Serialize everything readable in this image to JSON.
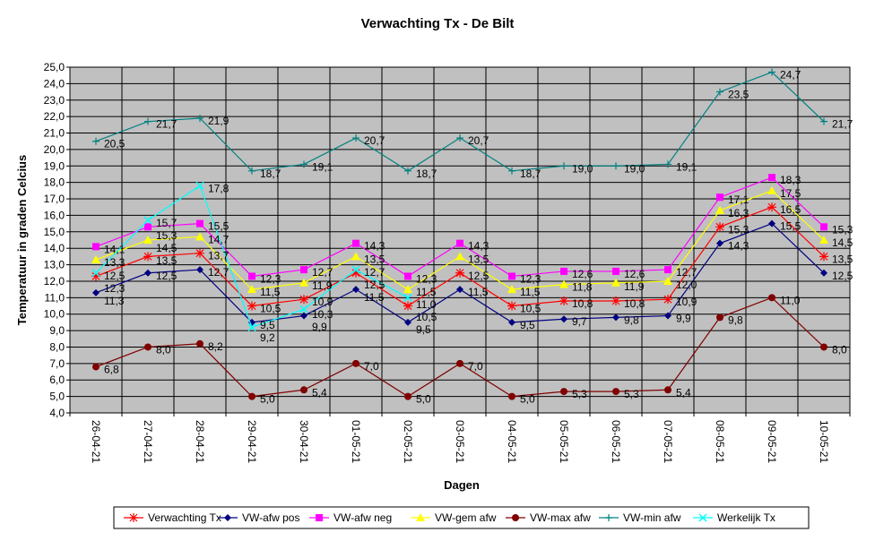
{
  "chart_data": {
    "type": "line",
    "title": "Verwachting Tx - De Bilt",
    "xlabel": "Dagen",
    "ylabel": "Temperatuur in graden Celcius",
    "ylim": [
      4,
      25
    ],
    "ytick_step": 1,
    "grid": true,
    "legend_position": "bottom",
    "categories": [
      "26-04-21",
      "27-04-21",
      "28-04-21",
      "29-04-21",
      "30-04-21",
      "01-05-21",
      "02-05-21",
      "03-05-21",
      "04-05-21",
      "05-05-21",
      "06-05-21",
      "07-05-21",
      "08-05-21",
      "09-05-21",
      "10-05-21"
    ],
    "series": [
      {
        "name": "Verwachting Tx",
        "color": "#ff0000",
        "marker": "star",
        "values": [
          12.3,
          13.5,
          13.7,
          10.5,
          10.9,
          12.5,
          10.5,
          12.5,
          10.5,
          10.8,
          10.8,
          10.9,
          15.3,
          16.5,
          13.5
        ]
      },
      {
        "name": "VW-afw pos",
        "color": "#000080",
        "marker": "diamond",
        "values": [
          11.3,
          12.5,
          12.7,
          9.5,
          9.9,
          11.5,
          9.5,
          11.5,
          9.5,
          9.7,
          9.8,
          9.9,
          14.3,
          15.5,
          12.5
        ]
      },
      {
        "name": "VW-afw neg",
        "color": "#ff00ff",
        "marker": "square",
        "values": [
          14.1,
          15.3,
          15.5,
          12.3,
          12.7,
          14.3,
          12.3,
          14.3,
          12.3,
          12.6,
          12.6,
          12.7,
          17.1,
          18.3,
          15.3
        ]
      },
      {
        "name": "VW-gem afw",
        "color": "#ffff00",
        "marker": "triangle",
        "values": [
          13.3,
          14.5,
          14.7,
          11.5,
          11.9,
          13.5,
          11.5,
          13.5,
          11.5,
          11.8,
          11.9,
          12.0,
          16.3,
          17.5,
          14.5
        ]
      },
      {
        "name": "VW-max afw",
        "color": "#800000",
        "marker": "circle",
        "values": [
          6.8,
          8.0,
          8.2,
          5.0,
          5.4,
          7.0,
          5.0,
          7.0,
          5.0,
          5.3,
          5.3,
          5.4,
          9.8,
          11.0,
          8.0
        ]
      },
      {
        "name": "VW-min afw",
        "color": "#008080",
        "marker": "plus",
        "values": [
          20.5,
          21.7,
          21.9,
          18.7,
          19.1,
          20.7,
          18.7,
          20.7,
          18.7,
          19.0,
          19.0,
          19.1,
          23.5,
          24.7,
          21.7
        ]
      },
      {
        "name": "Werkelijk Tx",
        "color": "#00ffff",
        "marker": "x",
        "values": [
          12.5,
          15.7,
          17.8,
          9.2,
          10.3,
          12.7,
          11.0,
          null,
          null,
          null,
          null,
          null,
          null,
          null,
          null
        ]
      }
    ]
  }
}
